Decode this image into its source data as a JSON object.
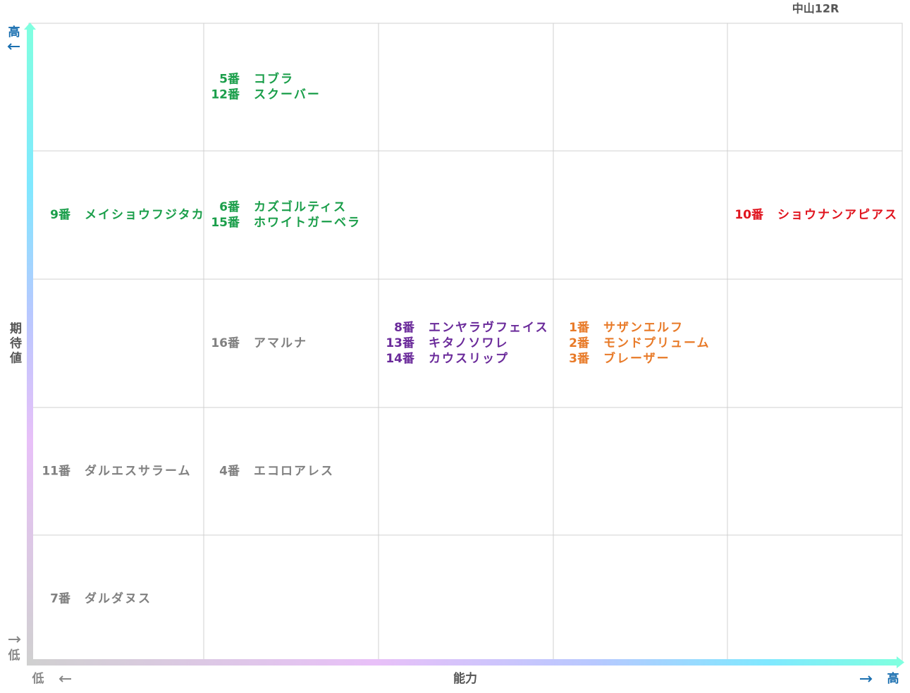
{
  "header": {
    "title": "中山12R"
  },
  "y_axis": {
    "high": "高",
    "label": "期待値",
    "low": "低",
    "high_color": "#1a6fb0",
    "low_color": "#888888"
  },
  "x_axis": {
    "low": "低",
    "label": "能力",
    "high": "高",
    "high_color": "#1a6fb0",
    "low_color": "#888888"
  },
  "grid": {
    "rows": [
      [
        null,
        {
          "color": "#1a9e4a",
          "entries": [
            {
              "number": "5番",
              "name": "コブラ"
            },
            {
              "number": "12番",
              "name": "スクーバー"
            }
          ]
        },
        null,
        null,
        null
      ],
      [
        {
          "color": "#1a9e4a",
          "entries": [
            {
              "number": "9番",
              "name": "メイショウフジタカ"
            }
          ]
        },
        {
          "color": "#1a9e4a",
          "entries": [
            {
              "number": "6番",
              "name": "カズゴルティス"
            },
            {
              "number": "15番",
              "name": "ホワイトガーベラ"
            }
          ]
        },
        null,
        null,
        {
          "color": "#e0141e",
          "entries": [
            {
              "number": "10番",
              "name": "ショウナンアピアス"
            }
          ]
        }
      ],
      [
        null,
        {
          "color": "#808080",
          "entries": [
            {
              "number": "16番",
              "name": "アマルナ"
            }
          ]
        },
        {
          "color": "#6a2a9a",
          "entries": [
            {
              "number": "8番",
              "name": "エンヤラヴフェイス"
            },
            {
              "number": "13番",
              "name": "キタノソワレ"
            },
            {
              "number": "14番",
              "name": "カウスリップ"
            }
          ]
        },
        {
          "color": "#e87a28",
          "entries": [
            {
              "number": "1番",
              "name": "サザンエルフ"
            },
            {
              "number": "2番",
              "name": "モンドプリューム"
            },
            {
              "number": "3番",
              "name": "ブレーザー"
            }
          ]
        },
        null
      ],
      [
        {
          "color": "#808080",
          "entries": [
            {
              "number": "11番",
              "name": "ダルエスサラーム"
            }
          ]
        },
        {
          "color": "#808080",
          "entries": [
            {
              "number": "4番",
              "name": "エコロアレス"
            }
          ]
        },
        null,
        null,
        null
      ],
      [
        {
          "color": "#808080",
          "entries": [
            {
              "number": "7番",
              "name": "ダルダヌス"
            }
          ]
        },
        null,
        null,
        null,
        null
      ]
    ]
  }
}
